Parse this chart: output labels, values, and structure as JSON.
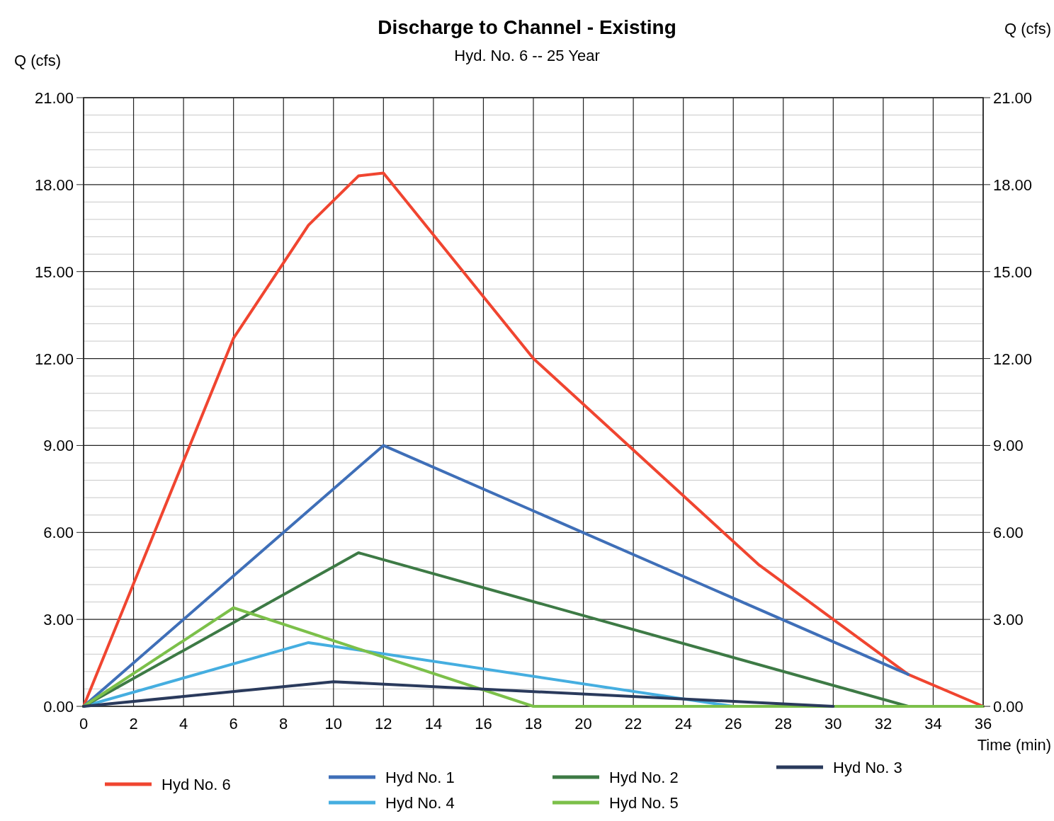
{
  "chart_data": {
    "type": "line",
    "title": "Discharge to Channel - Existing",
    "subtitle": "Hyd. No. 6 -- 25 Year",
    "xlabel": "Time (min)",
    "ylabel": "Q (cfs)",
    "y2label": "Q (cfs)",
    "xlim": [
      0,
      36
    ],
    "xticks": [
      0,
      2,
      4,
      6,
      8,
      10,
      12,
      14,
      16,
      18,
      20,
      22,
      24,
      26,
      28,
      30,
      32,
      34,
      36
    ],
    "ylim": [
      0,
      21
    ],
    "yticks": [
      {
        "value": 0,
        "label": "0.00"
      },
      {
        "value": 3,
        "label": "3.00"
      },
      {
        "value": 6,
        "label": "6.00"
      },
      {
        "value": 9,
        "label": "9.00"
      },
      {
        "value": 12,
        "label": "12.00"
      },
      {
        "value": 15,
        "label": "15.00"
      },
      {
        "value": 18,
        "label": "18.00"
      },
      {
        "value": 21,
        "label": "21.00"
      }
    ],
    "y2lim": [
      0,
      21
    ],
    "y2ticks": [
      {
        "value": 0,
        "label": "0.00"
      },
      {
        "value": 3,
        "label": "3.00"
      },
      {
        "value": 6,
        "label": "6.00"
      },
      {
        "value": 9,
        "label": "9.00"
      },
      {
        "value": 12,
        "label": "12.00"
      },
      {
        "value": 15,
        "label": "15.00"
      },
      {
        "value": 18,
        "label": "18.00"
      },
      {
        "value": 21,
        "label": "21.00"
      }
    ],
    "grid": true,
    "legend": "bottom",
    "marker": "none",
    "line_style": "solid",
    "series": [
      {
        "name": "Hyd No. 6",
        "color": "#f04530",
        "x": [
          0,
          6,
          9,
          11,
          12,
          18,
          27,
          33,
          36
        ],
        "values": [
          0,
          12.7,
          16.6,
          18.3,
          18.4,
          12.0,
          4.9,
          1.1,
          0
        ]
      },
      {
        "name": "Hyd No. 1",
        "color": "#3f6fb8",
        "x": [
          0,
          12,
          33
        ],
        "values": [
          0,
          9.0,
          1.1
        ]
      },
      {
        "name": "Hyd No. 4",
        "color": "#45aee0",
        "x": [
          0,
          9,
          26
        ],
        "values": [
          0,
          2.2,
          0
        ]
      },
      {
        "name": "Hyd No. 2",
        "color": "#3d7a45",
        "x": [
          0,
          11,
          33
        ],
        "values": [
          0,
          5.3,
          0
        ]
      },
      {
        "name": "Hyd No. 5",
        "color": "#7cc04a",
        "x": [
          0,
          6,
          18,
          36
        ],
        "values": [
          0,
          3.4,
          0,
          0
        ]
      },
      {
        "name": "Hyd No. 3",
        "color": "#2a3a5c",
        "x": [
          0,
          10,
          30
        ],
        "values": [
          0,
          0.85,
          0
        ]
      }
    ]
  }
}
